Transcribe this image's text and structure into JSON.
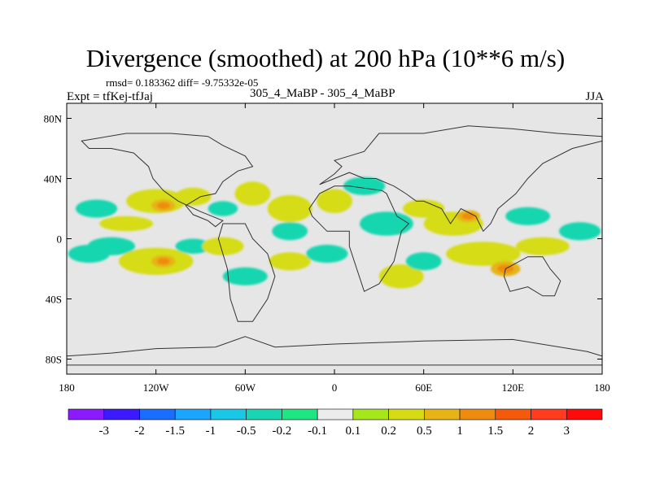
{
  "title": "Divergence (smoothed) at 200 hPa (10**6 m/s)",
  "stats_line": "rmsd= 0.183362  diff= -9.75332e-05",
  "left_label": "Expt = tfKej-tfJaj",
  "center_label": "305_4_MaBP - 305_4_MaBP",
  "right_label": "JJA",
  "chart_data": {
    "type": "heatmap",
    "field": "divergence difference",
    "units": "10**6 m/s",
    "xlim": [
      -180,
      180
    ],
    "ylim": [
      -90,
      90
    ],
    "x_ticks": [
      {
        "value": -180,
        "label": "180"
      },
      {
        "value": -120,
        "label": "120W"
      },
      {
        "value": -60,
        "label": "60W"
      },
      {
        "value": 0,
        "label": "0"
      },
      {
        "value": 60,
        "label": "60E"
      },
      {
        "value": 120,
        "label": "120E"
      },
      {
        "value": 180,
        "label": "180"
      }
    ],
    "y_ticks": [
      {
        "value": 80,
        "label": "80N"
      },
      {
        "value": 40,
        "label": "40N"
      },
      {
        "value": 0,
        "label": "0"
      },
      {
        "value": -40,
        "label": "40S"
      },
      {
        "value": -80,
        "label": "80S"
      }
    ],
    "colorbar": {
      "labels": [
        "-3",
        "-2",
        "-1.5",
        "-1",
        "-0.5",
        "-0.2",
        "-0.1",
        "0.1",
        "0.2",
        "0.5",
        "1",
        "1.5",
        "2",
        "3"
      ],
      "colors": [
        "#8c1aff",
        "#3c1aff",
        "#1a6eff",
        "#1aa6ff",
        "#19c8e6",
        "#19d6b0",
        "#1ee682",
        "#ececec",
        "#a6e61a",
        "#d6dc14",
        "#e6b414",
        "#ef8c10",
        "#f55a0a",
        "#ff3c1e",
        "#ff0a0a"
      ]
    },
    "background_color": "#e6e6e6",
    "blobs": [
      {
        "lon": -160,
        "lat": 20,
        "rx": 14,
        "ry": 6,
        "value": -0.3
      },
      {
        "lon": -140,
        "lat": 10,
        "rx": 18,
        "ry": 5,
        "value": 0.3
      },
      {
        "lon": -120,
        "lat": 25,
        "rx": 20,
        "ry": 8,
        "value": 0.4
      },
      {
        "lon": -115,
        "lat": 22,
        "rx": 8,
        "ry": 4,
        "value": 0.8
      },
      {
        "lon": -95,
        "lat": 28,
        "rx": 12,
        "ry": 6,
        "value": 0.3
      },
      {
        "lon": -150,
        "lat": -5,
        "rx": 16,
        "ry": 6,
        "value": -0.3
      },
      {
        "lon": -120,
        "lat": -15,
        "rx": 25,
        "ry": 9,
        "value": 0.35
      },
      {
        "lon": -115,
        "lat": -15,
        "rx": 8,
        "ry": 4,
        "value": 0.8
      },
      {
        "lon": -165,
        "lat": -10,
        "rx": 14,
        "ry": 6,
        "value": -0.35
      },
      {
        "lon": -95,
        "lat": -5,
        "rx": 12,
        "ry": 5,
        "value": -0.3
      },
      {
        "lon": -75,
        "lat": 20,
        "rx": 10,
        "ry": 5,
        "value": -0.25
      },
      {
        "lon": -75,
        "lat": -5,
        "rx": 14,
        "ry": 6,
        "value": 0.3
      },
      {
        "lon": -55,
        "lat": 30,
        "rx": 12,
        "ry": 8,
        "value": 0.35
      },
      {
        "lon": -30,
        "lat": 20,
        "rx": 15,
        "ry": 9,
        "value": 0.4
      },
      {
        "lon": -30,
        "lat": 5,
        "rx": 12,
        "ry": 6,
        "value": -0.3
      },
      {
        "lon": -30,
        "lat": -15,
        "rx": 14,
        "ry": 6,
        "value": 0.35
      },
      {
        "lon": -5,
        "lat": -10,
        "rx": 14,
        "ry": 6,
        "value": -0.3
      },
      {
        "lon": 0,
        "lat": 25,
        "rx": 12,
        "ry": 8,
        "value": 0.3
      },
      {
        "lon": 20,
        "lat": 35,
        "rx": 14,
        "ry": 6,
        "value": -0.3
      },
      {
        "lon": 35,
        "lat": 10,
        "rx": 18,
        "ry": 8,
        "value": -0.3
      },
      {
        "lon": 45,
        "lat": -25,
        "rx": 15,
        "ry": 8,
        "value": 0.3
      },
      {
        "lon": 60,
        "lat": 20,
        "rx": 14,
        "ry": 6,
        "value": 0.25
      },
      {
        "lon": 80,
        "lat": 10,
        "rx": 20,
        "ry": 8,
        "value": 0.4
      },
      {
        "lon": 90,
        "lat": 15,
        "rx": 8,
        "ry": 4,
        "value": 0.8
      },
      {
        "lon": 100,
        "lat": -10,
        "rx": 25,
        "ry": 8,
        "value": 0.35
      },
      {
        "lon": 115,
        "lat": -20,
        "rx": 10,
        "ry": 5,
        "value": 0.7
      },
      {
        "lon": 130,
        "lat": 15,
        "rx": 15,
        "ry": 6,
        "value": -0.3
      },
      {
        "lon": 140,
        "lat": -5,
        "rx": 18,
        "ry": 6,
        "value": 0.3
      },
      {
        "lon": 165,
        "lat": 5,
        "rx": 14,
        "ry": 6,
        "value": -0.3
      },
      {
        "lon": 60,
        "lat": -15,
        "rx": 12,
        "ry": 6,
        "value": -0.3
      },
      {
        "lon": -60,
        "lat": -25,
        "rx": 15,
        "ry": 6,
        "value": -0.25
      }
    ],
    "outline_color": "#333333",
    "outlines": [
      [
        [
          -60,
          10
        ],
        [
          -55,
          0
        ],
        [
          -45,
          -10
        ],
        [
          -40,
          -25
        ],
        [
          -45,
          -40
        ],
        [
          -55,
          -55
        ],
        [
          -65,
          -55
        ],
        [
          -70,
          -40
        ],
        [
          -72,
          -20
        ],
        [
          -78,
          0
        ],
        [
          -75,
          10
        ]
      ],
      [
        [
          -170,
          65
        ],
        [
          -140,
          70
        ],
        [
          -110,
          70
        ],
        [
          -85,
          68
        ],
        [
          -75,
          62
        ],
        [
          -60,
          55
        ],
        [
          -55,
          48
        ],
        [
          -65,
          45
        ],
        [
          -75,
          38
        ],
        [
          -80,
          30
        ],
        [
          -90,
          28
        ],
        [
          -100,
          22
        ],
        [
          -95,
          16
        ],
        [
          -85,
          12
        ],
        [
          -80,
          8
        ],
        [
          -75,
          12
        ],
        [
          -90,
          18
        ],
        [
          -105,
          25
        ],
        [
          -115,
          32
        ],
        [
          -122,
          40
        ],
        [
          -125,
          48
        ],
        [
          -135,
          57
        ],
        [
          -150,
          60
        ],
        [
          -165,
          60
        ]
      ],
      [
        [
          -15,
          15
        ],
        [
          -5,
          5
        ],
        [
          10,
          5
        ],
        [
          10,
          -5
        ],
        [
          15,
          -20
        ],
        [
          20,
          -35
        ],
        [
          30,
          -30
        ],
        [
          40,
          -15
        ],
        [
          45,
          5
        ],
        [
          50,
          10
        ],
        [
          42,
          15
        ],
        [
          35,
          30
        ],
        [
          32,
          32
        ],
        [
          10,
          35
        ],
        [
          0,
          35
        ],
        [
          -10,
          30
        ],
        [
          -17,
          20
        ]
      ],
      [
        [
          -10,
          36
        ],
        [
          0,
          43
        ],
        [
          5,
          48
        ],
        [
          0,
          52
        ],
        [
          10,
          55
        ],
        [
          20,
          58
        ],
        [
          30,
          70
        ],
        [
          60,
          70
        ],
        [
          90,
          75
        ],
        [
          120,
          73
        ],
        [
          150,
          70
        ],
        [
          180,
          68
        ],
        [
          180,
          65
        ],
        [
          160,
          60
        ],
        [
          140,
          50
        ],
        [
          130,
          40
        ],
        [
          122,
          30
        ],
        [
          110,
          20
        ],
        [
          105,
          10
        ],
        [
          100,
          5
        ],
        [
          95,
          15
        ],
        [
          85,
          20
        ],
        [
          78,
          10
        ],
        [
          72,
          20
        ],
        [
          60,
          25
        ],
        [
          55,
          25
        ],
        [
          48,
          30
        ],
        [
          40,
          35
        ],
        [
          28,
          40
        ],
        [
          20,
          40
        ],
        [
          10,
          44
        ],
        [
          0,
          40
        ]
      ],
      [
        [
          115,
          -20
        ],
        [
          130,
          -12
        ],
        [
          140,
          -12
        ],
        [
          145,
          -20
        ],
        [
          152,
          -28
        ],
        [
          148,
          -38
        ],
        [
          140,
          -38
        ],
        [
          130,
          -32
        ],
        [
          118,
          -35
        ],
        [
          114,
          -25
        ]
      ],
      [
        [
          -60,
          -65
        ],
        [
          -40,
          -72
        ],
        [
          0,
          -70
        ],
        [
          60,
          -68
        ],
        [
          120,
          -67
        ],
        [
          170,
          -75
        ],
        [
          180,
          -78
        ],
        [
          180,
          -84
        ],
        [
          -180,
          -84
        ],
        [
          -180,
          -78
        ],
        [
          -150,
          -76
        ],
        [
          -120,
          -73
        ],
        [
          -80,
          -72
        ]
      ]
    ]
  }
}
